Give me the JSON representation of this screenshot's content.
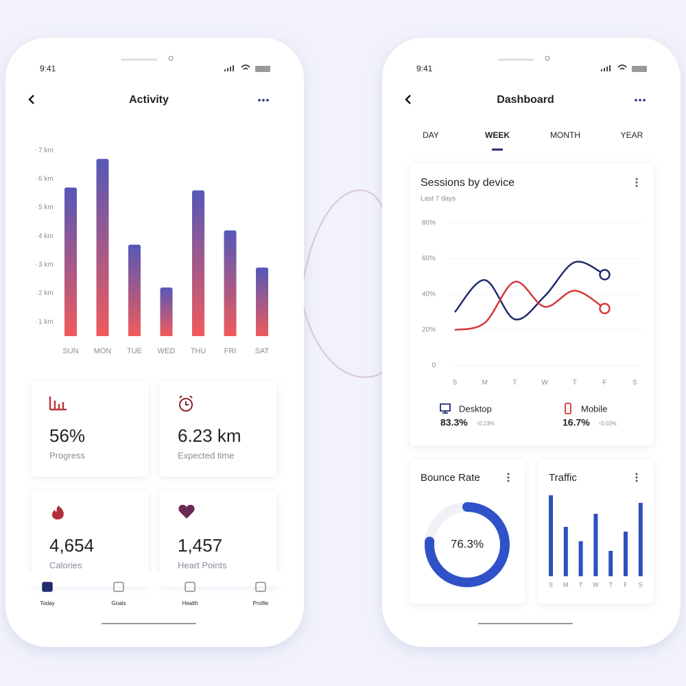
{
  "phones": [
    {
      "status_time": "9:41",
      "title": "Activity",
      "chart": {
        "type": "bar",
        "categories": [
          "SUN",
          "MON",
          "TUE",
          "WED",
          "THU",
          "FRI",
          "SAT"
        ],
        "values": [
          5.7,
          6.7,
          3.7,
          2.2,
          5.6,
          4.2,
          2.9
        ],
        "ylim": [
          0.5,
          7.1
        ],
        "yticks": [
          {
            "value": 1,
            "label": "1 km"
          },
          {
            "value": 2,
            "label": "2 km"
          },
          {
            "value": 3,
            "label": "3 km"
          },
          {
            "value": 4,
            "label": "4 km"
          },
          {
            "value": 5,
            "label": "5 km"
          },
          {
            "value": 6,
            "label": "6 km"
          },
          {
            "value": 7,
            "label": "7 km"
          }
        ],
        "colors": [
          "#5558b8",
          "#f05a5c"
        ]
      },
      "stats": [
        {
          "value": "56%",
          "label": "Progress"
        },
        {
          "value": "6.23 km",
          "label": "Expected time"
        },
        {
          "value": "4,654",
          "label": "Calories"
        },
        {
          "value": "1,457",
          "label": "Heart Points"
        }
      ],
      "nav": [
        "Today",
        "Goals",
        "Health",
        "Profile"
      ]
    },
    {
      "status_time": "9:41",
      "title": "Dashboard",
      "tabs": [
        "DAY",
        "WEEK",
        "MONTH",
        "YEAR"
      ],
      "active_tab": 1,
      "sessions": {
        "type": "line",
        "title": "Sessions by device",
        "subtitle": "Last 7 days",
        "categories": [
          "S",
          "M",
          "T",
          "W",
          "T",
          "F",
          "S"
        ],
        "series": [
          {
            "name": "Desktop",
            "color": "#1f2a6e",
            "values": [
              30,
              48,
              26,
              39,
              58,
              51,
              null
            ]
          },
          {
            "name": "Mobile",
            "color": "#d6373a",
            "values": [
              20,
              24,
              47,
              33,
              42,
              32,
              null
            ]
          }
        ],
        "ylim": [
          0,
          80
        ],
        "yticks": [
          0,
          {
            "value": 20,
            "label": "20%"
          },
          {
            "value": 40,
            "label": "40%"
          },
          {
            "value": 60,
            "label": "60%"
          },
          {
            "value": 80,
            "label": "80%"
          }
        ],
        "legend": [
          {
            "share": "83.3%",
            "change": "↑0.23%"
          },
          {
            "share": "16.7%",
            "change": "↑0.02%"
          }
        ]
      },
      "bounce": {
        "type": "donut",
        "title": "Bounce Rate",
        "value": 76.3,
        "value_label": "76.3%",
        "max": 100,
        "color": "#3052c8"
      },
      "traffic": {
        "type": "bar",
        "title": "Traffic",
        "categories": [
          "S",
          "M",
          "T",
          "W",
          "T",
          "F",
          "S"
        ],
        "values": [
          118,
          72,
          51,
          91,
          37,
          65,
          107
        ],
        "ylim": [
          0,
          120
        ],
        "color": "#2d4fc0"
      }
    }
  ]
}
